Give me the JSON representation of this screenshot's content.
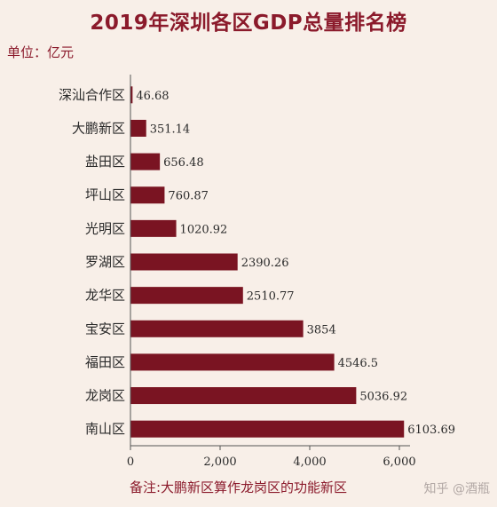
{
  "chart_data": {
    "type": "bar",
    "orientation": "horizontal",
    "title": "2019年深圳各区GDP总量排名榜",
    "unit_label": "单位：亿元",
    "categories": [
      "深汕合作区",
      "大鹏新区",
      "盐田区",
      "坪山区",
      "光明区",
      "罗湖区",
      "龙华区",
      "宝安区",
      "福田区",
      "龙岗区",
      "南山区"
    ],
    "values": [
      46.68,
      351.14,
      656.48,
      760.87,
      1020.92,
      2390.26,
      2510.77,
      3854,
      4546.5,
      5036.92,
      6103.69
    ],
    "value_labels": [
      "46.68",
      "351.14",
      "656.48",
      "760.87",
      "1020.92",
      "2390.26",
      "2510.77",
      "3854",
      "4546.5",
      "5036.92",
      "6103.69"
    ],
    "xlim": [
      0,
      6000
    ],
    "xticks": [
      0,
      2000,
      4000,
      6000
    ],
    "xtick_labels": [
      "0",
      "2,000",
      "4,000",
      "6,000"
    ],
    "grid": false,
    "legend": "none",
    "note": "备注:大鹏新区算作龙岗区的功能新区",
    "bar_color": "#7a1422",
    "text_color": "#8b1a2b"
  },
  "watermark": "知乎 @酒瓶"
}
